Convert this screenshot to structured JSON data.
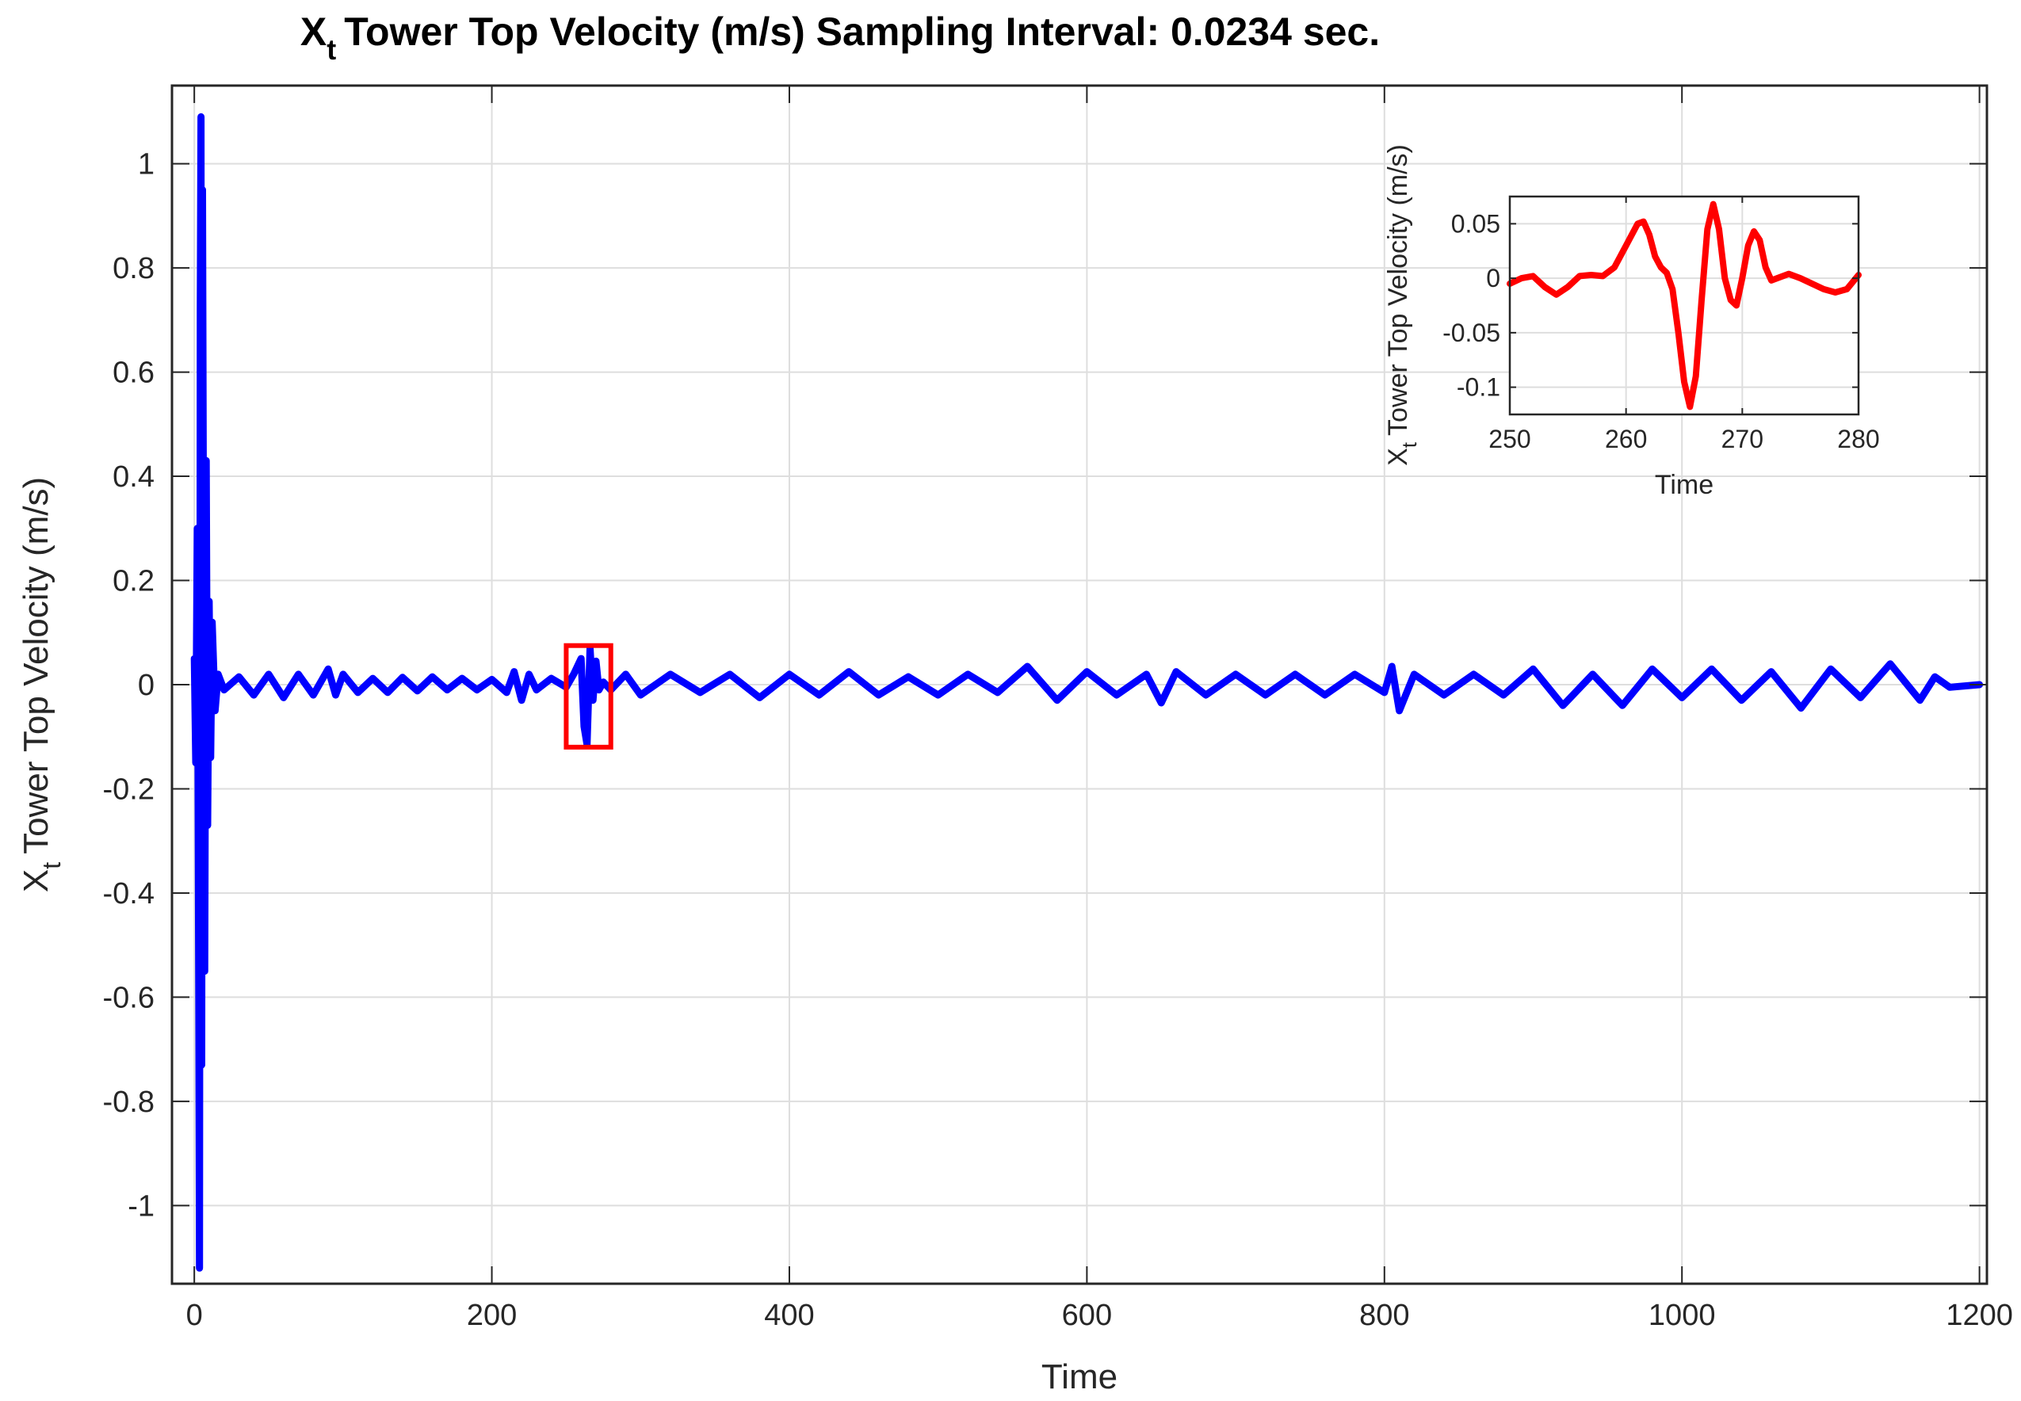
{
  "chart_data": [
    {
      "type": "line",
      "title": "Tower Top Velocity (m/s) Sampling Interval: 0.0234 sec.",
      "title_prefix": "X",
      "title_subscript": "t",
      "xlabel": "Time",
      "ylabel": "Tower Top Velocity (m/s)",
      "ylabel_prefix": "X",
      "ylabel_subscript": "t",
      "xlim": [
        -15,
        1205
      ],
      "ylim": [
        -1.15,
        1.15
      ],
      "xticks": [
        0,
        200,
        400,
        600,
        800,
        1000,
        1200
      ],
      "xtick_labels": [
        "0",
        "200",
        "400",
        "600",
        "800",
        "1000",
        "1200"
      ],
      "yticks": [
        -1,
        -0.8,
        -0.6,
        -0.4,
        -0.2,
        0,
        0.2,
        0.4,
        0.6,
        0.8,
        1
      ],
      "ytick_labels": [
        "-1",
        "-0.8",
        "-0.6",
        "-0.4",
        "-0.2",
        "0",
        "0.2",
        "0.4",
        "0.6",
        "0.8",
        "1"
      ],
      "grid": true,
      "series": [
        {
          "color": "#0000ff",
          "x": [
            0,
            1,
            2,
            3,
            3.5,
            4,
            4.5,
            5,
            5.5,
            6,
            7,
            8,
            9,
            10,
            11,
            12,
            14,
            16,
            20,
            30,
            40,
            50,
            60,
            70,
            80,
            90,
            95,
            100,
            110,
            120,
            130,
            140,
            150,
            160,
            170,
            180,
            190,
            200,
            210,
            215,
            220,
            225,
            230,
            240,
            250,
            255,
            260,
            262,
            264,
            266,
            268,
            270,
            272,
            275,
            280,
            290,
            300,
            320,
            340,
            360,
            380,
            400,
            420,
            440,
            460,
            480,
            500,
            520,
            540,
            560,
            580,
            600,
            620,
            640,
            650,
            660,
            680,
            700,
            720,
            740,
            760,
            780,
            800,
            805,
            810,
            820,
            840,
            860,
            880,
            900,
            920,
            940,
            960,
            980,
            1000,
            1020,
            1040,
            1060,
            1080,
            1100,
            1120,
            1140,
            1160,
            1170,
            1180,
            1200
          ],
          "y": [
            0.05,
            -0.15,
            0.3,
            -0.6,
            -1.12,
            0.72,
            1.09,
            -0.73,
            0.95,
            0.45,
            -0.55,
            0.43,
            -0.27,
            0.16,
            -0.14,
            0.12,
            -0.05,
            0.02,
            -0.01,
            0.015,
            -0.02,
            0.02,
            -0.025,
            0.02,
            -0.02,
            0.03,
            -0.02,
            0.02,
            -0.015,
            0.012,
            -0.015,
            0.014,
            -0.012,
            0.015,
            -0.01,
            0.012,
            -0.01,
            0.01,
            -0.015,
            0.025,
            -0.03,
            0.02,
            -0.01,
            0.012,
            -0.005,
            0.02,
            0.05,
            -0.08,
            -0.115,
            0.07,
            -0.03,
            0.045,
            -0.01,
            0.005,
            -0.01,
            0.02,
            -0.02,
            0.02,
            -0.015,
            0.02,
            -0.025,
            0.02,
            -0.02,
            0.025,
            -0.02,
            0.015,
            -0.02,
            0.02,
            -0.015,
            0.035,
            -0.03,
            0.025,
            -0.02,
            0.02,
            -0.035,
            0.025,
            -0.02,
            0.02,
            -0.02,
            0.02,
            -0.02,
            0.02,
            -0.015,
            0.035,
            -0.05,
            0.02,
            -0.02,
            0.02,
            -0.02,
            0.03,
            -0.04,
            0.02,
            -0.04,
            0.03,
            -0.025,
            0.03,
            -0.03,
            0.025,
            -0.045,
            0.03,
            -0.025,
            0.04,
            -0.03,
            0.015,
            -0.005,
            0
          ]
        }
      ],
      "highlight_box": {
        "x": [
          250,
          280
        ],
        "y": [
          -0.12,
          0.075
        ],
        "color": "#ff0000"
      }
    },
    {
      "type": "line",
      "xlabel": "Time",
      "ylabel": "Tower Top Velocity (m/s)",
      "ylabel_prefix": "X",
      "ylabel_subscript": "t",
      "xlim": [
        250,
        280
      ],
      "ylim": [
        -0.125,
        0.075
      ],
      "xticks": [
        250,
        260,
        270,
        280
      ],
      "xtick_labels": [
        "250",
        "260",
        "270",
        "280"
      ],
      "yticks": [
        -0.1,
        -0.05,
        0,
        0.05
      ],
      "ytick_labels": [
        "-0.1",
        "-0.05",
        "0",
        "0.05"
      ],
      "grid": true,
      "series": [
        {
          "color": "#ff0000",
          "x": [
            250,
            251,
            252,
            253,
            254,
            255,
            256,
            257,
            258,
            259,
            260,
            261,
            261.5,
            262,
            262.5,
            263,
            263.5,
            264,
            264.5,
            265,
            265.5,
            266,
            266.5,
            267,
            267.5,
            268,
            268.5,
            269,
            269.5,
            270,
            270.5,
            271,
            271.5,
            272,
            272.5,
            273,
            274,
            275,
            276,
            277,
            278,
            279,
            280
          ],
          "y": [
            -0.005,
            0,
            0.002,
            -0.008,
            -0.015,
            -0.008,
            0.002,
            0.003,
            0.002,
            0.01,
            0.03,
            0.05,
            0.052,
            0.04,
            0.02,
            0.01,
            0.005,
            -0.01,
            -0.05,
            -0.095,
            -0.118,
            -0.09,
            -0.02,
            0.045,
            0.068,
            0.045,
            0.0,
            -0.02,
            -0.025,
            0.0,
            0.03,
            0.043,
            0.035,
            0.01,
            -0.002,
            0.0,
            0.004,
            0.0,
            -0.005,
            -0.01,
            -0.013,
            -0.01,
            0.003
          ]
        }
      ]
    }
  ]
}
